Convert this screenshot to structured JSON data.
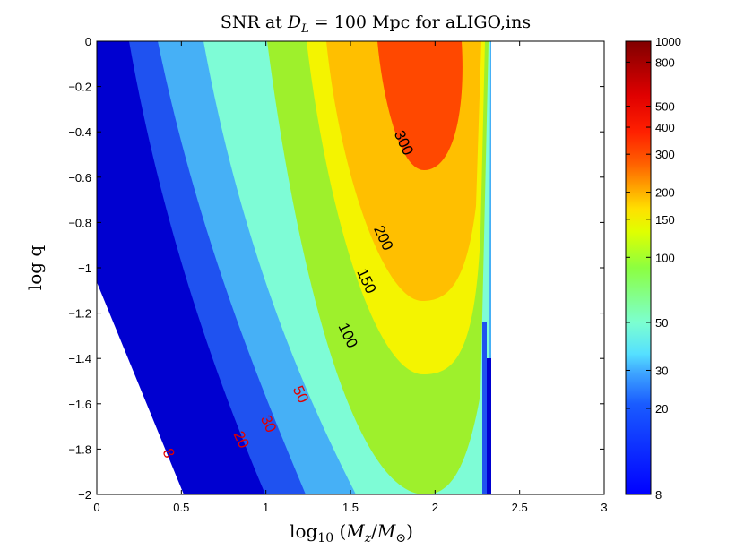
{
  "chart_data": {
    "type": "contour",
    "title": "SNR at D_L = 100 Mpc for aLIGO,ins",
    "title_parts": {
      "pre": "SNR at ",
      "var": "D",
      "sub": "L",
      "post": " = 100 Mpc for aLIGO,ins"
    },
    "xlabel": "log10 (Mz/M⊙)",
    "xlabel_parts": {
      "fn": "log",
      "sub": "10",
      "open": " (",
      "num": "M",
      "num_sub": "z",
      "slash": "/",
      "den": "M",
      "den_sub": "⊙",
      "close": ")"
    },
    "ylabel": "log q",
    "xlim": [
      0,
      3
    ],
    "ylim": [
      -2,
      0
    ],
    "x_ticks": [
      "0",
      "0.5",
      "1",
      "1.5",
      "2",
      "2.5",
      "3"
    ],
    "x_tick_values": [
      0,
      0.5,
      1,
      1.5,
      2,
      2.5,
      3
    ],
    "y_ticks": [
      "0",
      "-0.2",
      "-0.4",
      "-0.6",
      "-0.8",
      "-1",
      "-1.2",
      "-1.4",
      "-1.6",
      "-1.8",
      "-2"
    ],
    "y_tick_values": [
      0,
      -0.2,
      -0.4,
      -0.6,
      -0.8,
      -1,
      -1.2,
      -1.4,
      -1.6,
      -1.8,
      -2
    ],
    "cutoff_log10_mass": 2.33,
    "peak": {
      "log10_mass": 1.93,
      "log_q": 0
    },
    "contour_levels": [
      8,
      20,
      30,
      50,
      100,
      150,
      200,
      300
    ],
    "contour_labels": [
      {
        "text": "300",
        "x": 1.81,
        "y": -0.45,
        "color": "black"
      },
      {
        "text": "200",
        "x": 1.69,
        "y": -0.87,
        "color": "black"
      },
      {
        "text": "150",
        "x": 1.59,
        "y": -1.06,
        "color": "black"
      },
      {
        "text": "100",
        "x": 1.48,
        "y": -1.3,
        "color": "black"
      },
      {
        "text": "50",
        "x": 1.2,
        "y": -1.56,
        "color": "red"
      },
      {
        "text": "30",
        "x": 1.01,
        "y": -1.69,
        "color": "red"
      },
      {
        "text": "20",
        "x": 0.85,
        "y": -1.76,
        "color": "red"
      },
      {
        "text": "8",
        "x": 0.42,
        "y": -1.82,
        "color": "red"
      }
    ],
    "band_colors": {
      "8": "#0000d0",
      "20": "#1f52f0",
      "30": "#46b0f6",
      "50": "#7efcd6",
      "100": "#9ef02c",
      "150": "#f4f400",
      "200": "#ffbf00",
      "300": "#ff4800"
    },
    "colorbar": {
      "ticks": [
        "8",
        "20",
        "30",
        "50",
        "100",
        "150",
        "200",
        "300",
        "400",
        "500",
        "800",
        "1000"
      ],
      "tick_values": [
        8,
        20,
        30,
        50,
        100,
        150,
        200,
        300,
        400,
        500,
        800,
        1000
      ],
      "range": [
        8,
        1000
      ],
      "scale": "log"
    }
  }
}
